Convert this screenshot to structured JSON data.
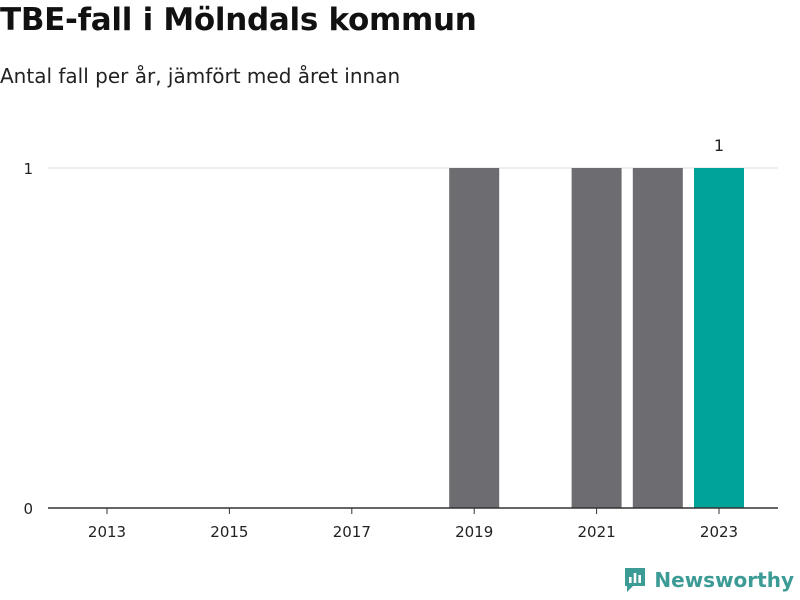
{
  "header": {
    "title": "TBE-fall i Mölndals kommun",
    "subtitle": "Antal fall per år, jämfört med året innan"
  },
  "brand": {
    "name": "Newsworthy",
    "icon": "newsworthy-logo-icon",
    "color": "#3d9b96"
  },
  "colors": {
    "bar": "#6d6d71",
    "highlight": "#00a398",
    "grid": "#dddddd",
    "axis": "#333333"
  },
  "chart_data": {
    "type": "bar",
    "categories": [
      "2013",
      "2014",
      "2015",
      "2016",
      "2017",
      "2018",
      "2019",
      "2020",
      "2021",
      "2022",
      "2023"
    ],
    "values": [
      0,
      0,
      0,
      0,
      0,
      0,
      1,
      0,
      1,
      1,
      1
    ],
    "highlight_index": 10,
    "x_tick_labels": [
      "2013",
      "2015",
      "2017",
      "2019",
      "2021",
      "2023"
    ],
    "y_ticks": [
      0,
      1
    ],
    "ylim": [
      0,
      1
    ],
    "data_labels": [
      {
        "category": "2023",
        "text": "1"
      }
    ],
    "title": "TBE-fall i Mölndals kommun",
    "subtitle": "Antal fall per år, jämfört med året innan",
    "xlabel": "",
    "ylabel": "",
    "grid": true,
    "legend": "none"
  }
}
